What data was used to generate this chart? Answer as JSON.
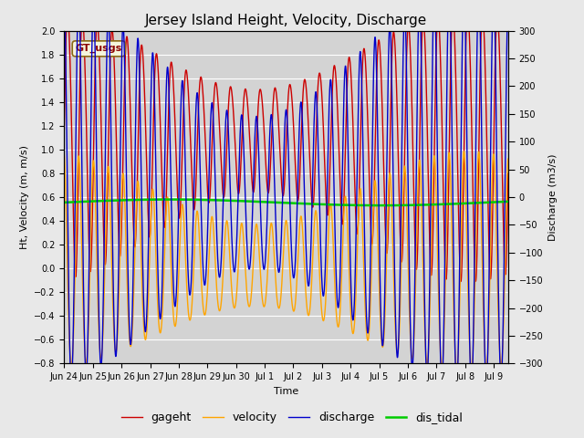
{
  "title": "Jersey Island Height, Velocity, Discharge",
  "xlabel": "Time",
  "ylabel_left": "Ht, Velocity (m, m/s)",
  "ylabel_right": "Discharge (m3/s)",
  "ylim_left": [
    -0.8,
    2.0
  ],
  "ylim_right": [
    -300,
    300
  ],
  "yticks_left": [
    -0.8,
    -0.6,
    -0.4,
    -0.2,
    0.0,
    0.2,
    0.4,
    0.6,
    0.8,
    1.0,
    1.2,
    1.4,
    1.6,
    1.8,
    2.0
  ],
  "yticks_right": [
    -300,
    -250,
    -200,
    -150,
    -100,
    -50,
    0,
    50,
    100,
    150,
    200,
    250,
    300
  ],
  "tidal_period_hours": 12.42,
  "background_color": "#e8e8e8",
  "plot_bg_color": "#d3d3d3",
  "gageht_color": "#cc0000",
  "velocity_color": "#ffa500",
  "discharge_color": "#0000cc",
  "dis_tidal_color": "#00cc00",
  "line_width": 1.0,
  "legend_fontsize": 9,
  "title_fontsize": 11,
  "axis_fontsize": 8,
  "tick_fontsize": 7,
  "watermark_text": "GT_usgs",
  "watermark_color": "#8b0000",
  "watermark_bg": "#f5f5dc",
  "dis_tidal_value": 0.555,
  "xtick_labels": [
    "Jun 24",
    "Jun 25",
    "Jun 26",
    "Jun 27",
    "Jun 28",
    "Jun 29",
    "Jun 30",
    "Jul 1",
    "Jul 2",
    "Jul 3",
    "Jul 4",
    "Jul 5",
    "Jul 6",
    "Jul 7",
    "Jul 8",
    "Jul 9"
  ],
  "total_days": 15.5,
  "figwidth": 6.4,
  "figheight": 4.8,
  "fig_dpi": 100
}
